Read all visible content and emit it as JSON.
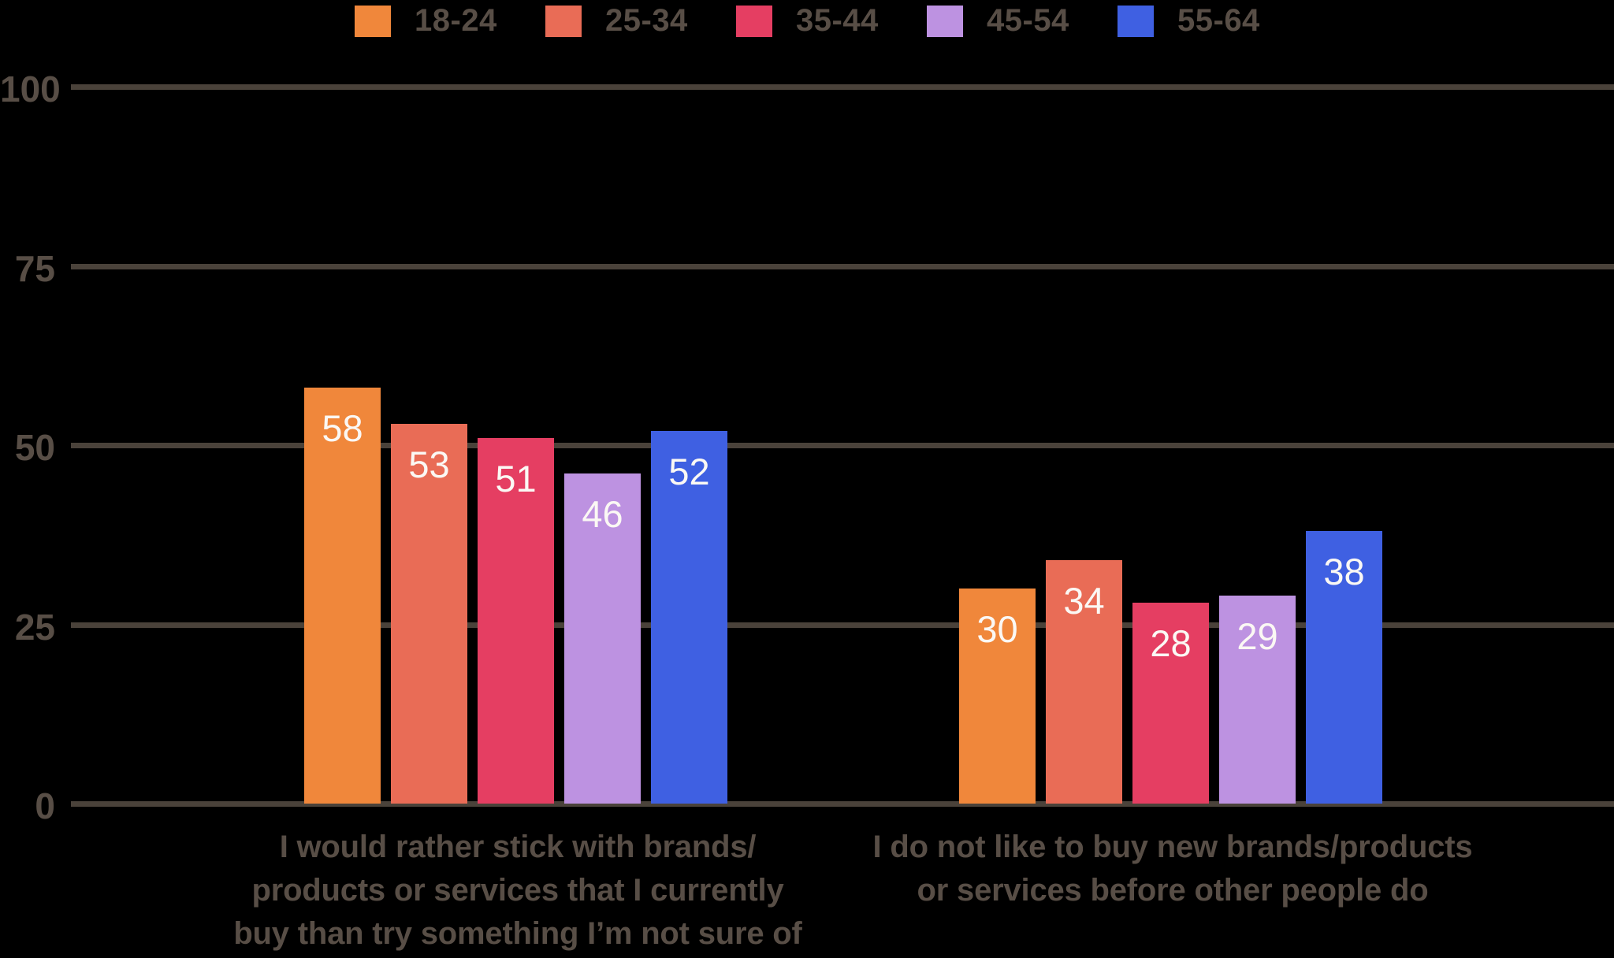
{
  "colors": {
    "background": "#000000",
    "text": "#584E46",
    "gridline": "#4A423A",
    "value_label": "#FBF8F4"
  },
  "legend": [
    {
      "label": "18-24",
      "color": "#F0873B"
    },
    {
      "label": "25-34",
      "color": "#E96C56"
    },
    {
      "label": "35-44",
      "color": "#E53E62"
    },
    {
      "label": "45-54",
      "color": "#BD92E1"
    },
    {
      "label": "55-64",
      "color": "#3F60E2"
    }
  ],
  "chart_data": {
    "type": "bar",
    "title": "",
    "categories": [
      "I would rather stick with brands/\nproducts or services that I currently\nbuy than try something I’m not sure of",
      "I do not like to buy new brands/products\nor services before other people do"
    ],
    "series": [
      {
        "name": "18-24",
        "color": "#F0873B",
        "values": [
          58,
          30
        ]
      },
      {
        "name": "25-34",
        "color": "#E96C56",
        "values": [
          53,
          34
        ]
      },
      {
        "name": "35-44",
        "color": "#E53E62",
        "values": [
          51,
          28
        ]
      },
      {
        "name": "45-54",
        "color": "#BD92E1",
        "values": [
          46,
          29
        ]
      },
      {
        "name": "55-64",
        "color": "#3F60E2",
        "values": [
          52,
          38
        ]
      }
    ],
    "ylabel": "",
    "xlabel": "",
    "ylim": [
      0,
      100
    ],
    "yticks": [
      0,
      25,
      50,
      75,
      100
    ],
    "grid": true,
    "legend_position": "top"
  }
}
